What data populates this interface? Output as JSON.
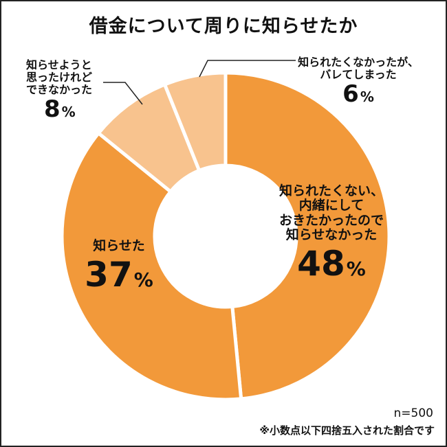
{
  "chart_data": {
    "type": "pie",
    "title": "借金について周りに知らせたか",
    "categories": [
      "知られたくない、内緒にしておきたかったので知らせなかった",
      "知らせた",
      "知らせようと思ったけれどできなかった",
      "知られたくなかったが、バレてしまった"
    ],
    "values": [
      48,
      37,
      8,
      6
    ],
    "unit": "%",
    "colors": [
      "#f2993a",
      "#f2993a",
      "#f8c38e",
      "#f8c38e"
    ],
    "legend": "none"
  },
  "labels": {
    "secret": {
      "lines": [
        "知られたくない、",
        "内緒にして",
        "おきたかったので",
        "知らせなかった"
      ],
      "num": "48",
      "sym": "%"
    },
    "told": {
      "lines": [
        "知らせた"
      ],
      "num": "37",
      "sym": "%"
    },
    "tried": {
      "lines": [
        "知らせようと",
        "思ったけれど",
        "できなかった"
      ],
      "num": "8",
      "sym": "%"
    },
    "found": {
      "lines": [
        "知られたくなかったが、",
        "バレてしまった"
      ],
      "num": "6",
      "sym": "%"
    }
  },
  "notes": {
    "n": "n=500",
    "rounding": "※小数点以下四捨五入された割合です"
  }
}
